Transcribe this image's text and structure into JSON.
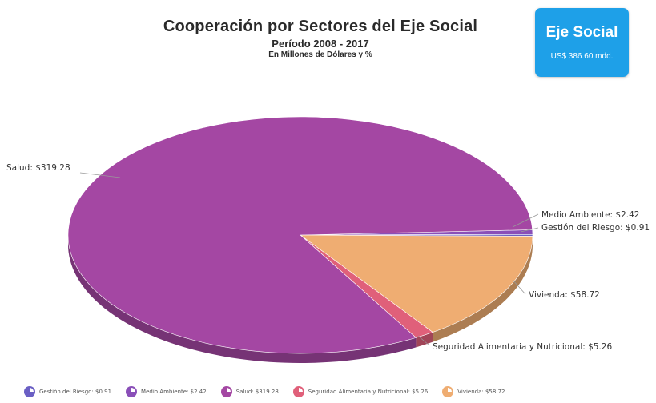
{
  "header": {
    "title": "Cooperación por Sectores del Eje Social",
    "subtitle": "Período 2008 - 2017",
    "unit_note": "En Millones de Dólares y %"
  },
  "badge": {
    "title": "Eje Social",
    "value": "US$ 386.60 mdd.",
    "color": "#1ea0e8"
  },
  "chart_data": {
    "type": "pie",
    "title": "Cooperación por Sectores del Eje Social",
    "subtitle": "Período 2008 - 2017",
    "units": "En Millones de Dólares y %",
    "three_d": true,
    "legend_position": "bottom",
    "slices": [
      {
        "name": "Gestión del Riesgo",
        "value": 0.91,
        "label": "Gestión del Riesgo: $0.91",
        "legend": "Gestión del Riesgo: $0.91",
        "color": "#6a5fc4"
      },
      {
        "name": "Medio Ambiente",
        "value": 2.42,
        "label": "Medio Ambiente: $2.42",
        "legend": "Medio Ambiente: $2.42",
        "color": "#8a4fb8"
      },
      {
        "name": "Salud",
        "value": 319.28,
        "label": "Salud: $319.28",
        "legend": "Salud: $319.28",
        "color": "#a447a3"
      },
      {
        "name": "Seguridad Alimentaria y Nutricional",
        "value": 5.26,
        "label": "Seguridad Alimentaria y Nutricional: $5.26",
        "legend": "Seguridad Alimentaria y Nutricional: $5.26",
        "color": "#e0607a"
      },
      {
        "name": "Vivienda",
        "value": 58.72,
        "label": "Vivienda: $58.72",
        "legend": "Vivienda: $58.72",
        "color": "#efad72"
      }
    ]
  }
}
